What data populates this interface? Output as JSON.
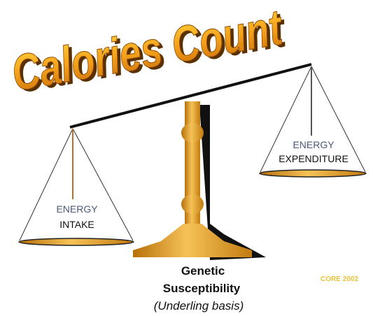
{
  "title": "Calories Count",
  "left_pan": {
    "line1": "ENERGY",
    "line2": "INTAKE"
  },
  "right_pan": {
    "line1": "ENERGY",
    "line2": "EXPENDITURE"
  },
  "base_label": {
    "line1": "Genetic",
    "line2": "Susceptibility",
    "note": "(Underling basis)"
  },
  "credit": "CORE 2002"
}
